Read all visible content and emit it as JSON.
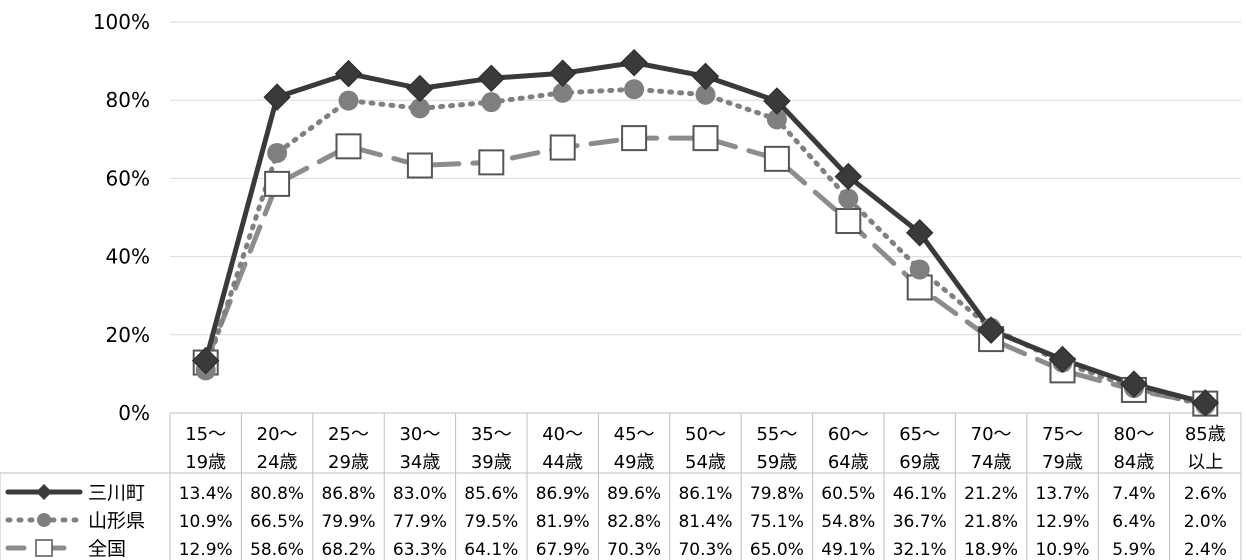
{
  "chart_data": {
    "type": "line",
    "categories": [
      [
        "15～",
        "19歳"
      ],
      [
        "20～",
        "24歳"
      ],
      [
        "25～",
        "29歳"
      ],
      [
        "30～",
        "34歳"
      ],
      [
        "35～",
        "39歳"
      ],
      [
        "40～",
        "44歳"
      ],
      [
        "45～",
        "49歳"
      ],
      [
        "50～",
        "54歳"
      ],
      [
        "55～",
        "59歳"
      ],
      [
        "60～",
        "64歳"
      ],
      [
        "65～",
        "69歳"
      ],
      [
        "70～",
        "74歳"
      ],
      [
        "75～",
        "79歳"
      ],
      [
        "80～",
        "84歳"
      ],
      [
        "85歳",
        "以上"
      ]
    ],
    "y_ticks": [
      "0%",
      "20%",
      "40%",
      "60%",
      "80%",
      "100%"
    ],
    "ylim": [
      0,
      100
    ],
    "grid": true,
    "series": [
      {
        "name": "三川町",
        "color": "#3a3a3a",
        "line_style": "solid",
        "marker": "diamond",
        "values": [
          13.4,
          80.8,
          86.8,
          83.0,
          85.6,
          86.9,
          89.6,
          86.1,
          79.8,
          60.5,
          46.1,
          21.2,
          13.7,
          7.4,
          2.6
        ],
        "labels": [
          "13.4%",
          "80.8%",
          "86.8%",
          "83.0%",
          "85.6%",
          "86.9%",
          "89.6%",
          "86.1%",
          "79.8%",
          "60.5%",
          "46.1%",
          "21.2%",
          "13.7%",
          "7.4%",
          "2.6%"
        ]
      },
      {
        "name": "山形県",
        "color": "#808080",
        "line_style": "dotted",
        "marker": "circle",
        "values": [
          10.9,
          66.5,
          79.9,
          77.9,
          79.5,
          81.9,
          82.8,
          81.4,
          75.1,
          54.8,
          36.7,
          21.8,
          12.9,
          6.4,
          2.0
        ],
        "labels": [
          "10.9%",
          "66.5%",
          "79.9%",
          "77.9%",
          "79.5%",
          "81.9%",
          "82.8%",
          "81.4%",
          "75.1%",
          "54.8%",
          "36.7%",
          "21.8%",
          "12.9%",
          "6.4%",
          "2.0%"
        ]
      },
      {
        "name": "全国",
        "color": "#8c8c8c",
        "line_style": "dashed",
        "marker": "square",
        "values": [
          12.9,
          58.6,
          68.2,
          63.3,
          64.1,
          67.9,
          70.3,
          70.3,
          65.0,
          49.1,
          32.1,
          18.9,
          10.9,
          5.9,
          2.4
        ],
        "labels": [
          "12.9%",
          "58.6%",
          "68.2%",
          "63.3%",
          "64.1%",
          "67.9%",
          "70.3%",
          "70.3%",
          "65.0%",
          "49.1%",
          "32.1%",
          "18.9%",
          "10.9%",
          "5.9%",
          "2.4%"
        ]
      }
    ]
  }
}
